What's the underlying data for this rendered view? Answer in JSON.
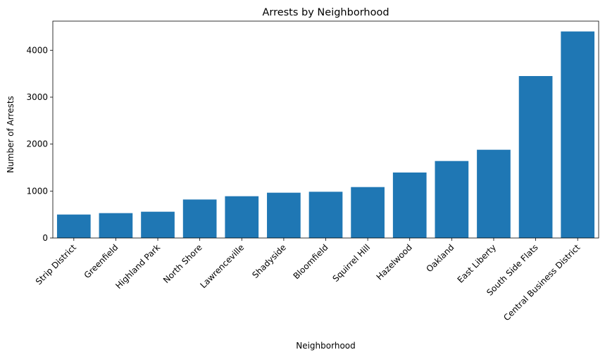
{
  "chart_data": {
    "type": "bar",
    "title": "Arrests by Neighborhood",
    "xlabel": "Neighborhood",
    "ylabel": "Number of Arrests",
    "categories": [
      "Strip District",
      "Greenfield",
      "Highland Park",
      "North Shore",
      "Lawrenceville",
      "Shadyside",
      "Bloomfield",
      "Squirrel Hill",
      "Hazelwood",
      "Oakland",
      "East Liberty",
      "South Side Flats",
      "Central Business District"
    ],
    "values": [
      500,
      530,
      560,
      820,
      890,
      965,
      985,
      1085,
      1395,
      1640,
      1880,
      3450,
      4400
    ],
    "ylim": [
      0,
      4620
    ],
    "yticks": [
      0,
      1000,
      2000,
      3000,
      4000
    ],
    "grid": false,
    "bar_color": "#1f77b4"
  }
}
